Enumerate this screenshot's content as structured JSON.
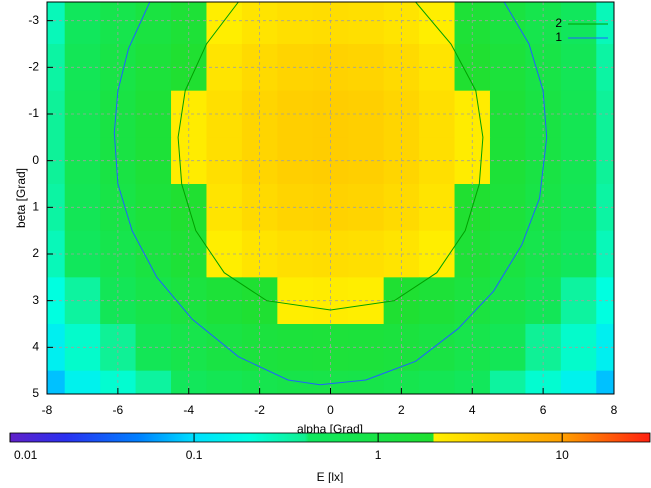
{
  "chart_data": {
    "type": "heatmap",
    "xlabel": "alpha [Grad]",
    "ylabel": "beta [Grad]",
    "cblabel": "E [lx]",
    "x": [
      -8,
      -7,
      -6,
      -5,
      -4,
      -3,
      -2,
      -1,
      0,
      1,
      2,
      3,
      4,
      5,
      6,
      7,
      8
    ],
    "y": [
      -3,
      -2,
      -1,
      0,
      1,
      2,
      3,
      4,
      5
    ],
    "z": [
      [
        0.28,
        0.48,
        0.77,
        1.16,
        1.61,
        2.08,
        2.5,
        2.79,
        2.9,
        2.79,
        2.5,
        2.08,
        1.61,
        1.16,
        0.77,
        0.48,
        0.28
      ],
      [
        0.34,
        0.58,
        0.94,
        1.41,
        1.96,
        2.53,
        3.05,
        3.4,
        3.53,
        3.4,
        3.05,
        2.53,
        1.96,
        1.41,
        0.94,
        0.58,
        0.34
      ],
      [
        0.37,
        0.64,
        1.04,
        1.56,
        2.16,
        2.8,
        3.37,
        3.76,
        3.9,
        3.76,
        3.37,
        2.8,
        2.16,
        1.56,
        1.04,
        0.64,
        0.37
      ],
      [
        0.37,
        0.64,
        1.04,
        1.56,
        2.16,
        2.8,
        3.37,
        3.76,
        3.9,
        3.76,
        3.37,
        2.8,
        2.16,
        1.56,
        1.04,
        0.64,
        0.37
      ],
      [
        0.34,
        0.58,
        0.94,
        1.41,
        1.96,
        2.53,
        3.05,
        3.4,
        3.53,
        3.4,
        3.05,
        2.53,
        1.96,
        1.41,
        0.94,
        0.58,
        0.34
      ],
      [
        0.28,
        0.48,
        0.77,
        1.16,
        1.61,
        2.08,
        2.5,
        2.79,
        2.9,
        2.79,
        2.5,
        2.08,
        1.61,
        1.16,
        0.77,
        0.48,
        0.28
      ],
      [
        0.2,
        0.35,
        0.57,
        0.86,
        1.19,
        1.54,
        1.85,
        2.07,
        2.15,
        2.07,
        1.85,
        1.54,
        1.19,
        0.86,
        0.57,
        0.35,
        0.2
      ],
      [
        0.14,
        0.24,
        0.38,
        0.58,
        0.8,
        1.04,
        1.25,
        1.39,
        1.44,
        1.39,
        1.25,
        1.04,
        0.8,
        0.58,
        0.38,
        0.24,
        0.14
      ],
      [
        0.08,
        0.15,
        0.23,
        0.35,
        0.49,
        0.63,
        0.76,
        0.85,
        0.88,
        0.85,
        0.76,
        0.63,
        0.49,
        0.35,
        0.23,
        0.15,
        0.08
      ]
    ],
    "series": [
      {
        "name": "2",
        "color": "#00a000",
        "x": [
          -2.6,
          -3.5,
          -4.1,
          -4.3,
          -4.2,
          -3.8,
          -3.0,
          -1.8,
          0,
          1.8,
          3.0,
          3.8,
          4.2,
          4.3,
          4.1,
          3.4,
          2.4
        ],
        "y": [
          -3.4,
          -2.5,
          -1.5,
          -0.5,
          0.5,
          1.5,
          2.4,
          3.0,
          3.2,
          3.0,
          2.4,
          1.5,
          0.5,
          -0.5,
          -1.5,
          -2.5,
          -3.4
        ]
      },
      {
        "name": "1",
        "color": "#2060ff",
        "x": [
          -5.1,
          -5.7,
          -6.0,
          -6.1,
          -6.0,
          -5.6,
          -4.9,
          -3.9,
          -2.6,
          -1.2,
          -0.3,
          1.0,
          2.4,
          3.6,
          4.6,
          5.4,
          5.9,
          6.1,
          6.0,
          5.6,
          4.9
        ],
        "y": [
          -3.4,
          -2.4,
          -1.5,
          -0.6,
          0.5,
          1.5,
          2.5,
          3.4,
          4.2,
          4.7,
          4.8,
          4.7,
          4.3,
          3.6,
          2.8,
          1.8,
          0.8,
          -0.5,
          -1.5,
          -2.5,
          -3.4
        ]
      }
    ],
    "xlim": [
      -8,
      8
    ],
    "xticks": [
      -8,
      -6,
      -4,
      -2,
      0,
      2,
      4,
      6,
      8
    ],
    "ylim": [
      -3.4,
      5
    ],
    "yticks": [
      -3,
      -2,
      -1,
      0,
      1,
      2,
      3,
      4,
      5
    ],
    "cblim": [
      0.01,
      30
    ],
    "cbticks": [
      0.01,
      0.1,
      1,
      10
    ],
    "cblog": true,
    "palette": [
      [
        0.01,
        "#6020c8"
      ],
      [
        0.02,
        "#2a30f0"
      ],
      [
        0.05,
        "#0080ff"
      ],
      [
        0.1,
        "#00e0ff"
      ],
      [
        0.2,
        "#00ffe0"
      ],
      [
        0.4,
        "#10f090"
      ],
      [
        0.42,
        "#10e860"
      ],
      [
        2,
        "#20e030"
      ],
      [
        2,
        "#fff000"
      ],
      [
        4,
        "#ffcc00"
      ],
      [
        10,
        "#ffa000"
      ],
      [
        30,
        "#ff2010"
      ]
    ],
    "grid": true,
    "legend": "upper right"
  }
}
